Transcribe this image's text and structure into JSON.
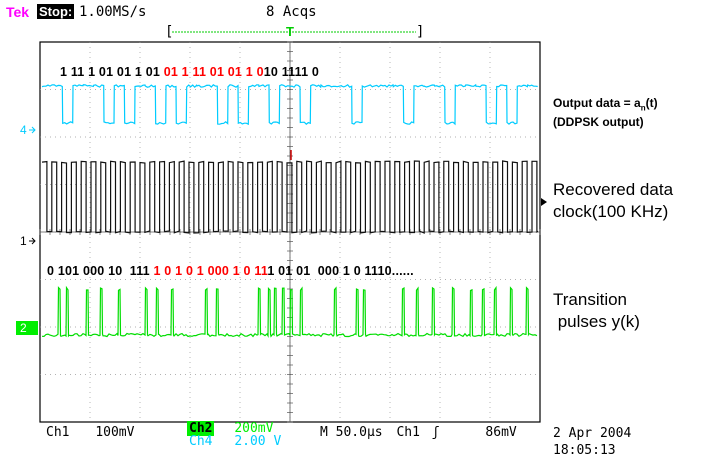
{
  "header": {
    "brand": "Tek",
    "state": "Stop:",
    "sample_rate": "1.00MS/s",
    "acquisitions": "8 Acqs"
  },
  "channel_markers": {
    "ch4": "4",
    "ch1": "1",
    "ch2": "2",
    "trigger": "T"
  },
  "bit_rows": {
    "top": [
      {
        "t": "1 11 1 01 01 1 01 ",
        "red": false
      },
      {
        "t": "01 1 11 01 01 1 0",
        "red": true
      },
      {
        "t": "10 1111 0",
        "red": false
      }
    ],
    "middle": [
      {
        "t": "0 101 000 10  111 ",
        "red": false
      },
      {
        "t": "1 0 1 0 1 000 1 0 11",
        "red": true
      },
      {
        "t": "1 01 01  000 1 0 1110......",
        "red": false
      }
    ]
  },
  "annotations": {
    "output_line1": "Output data = a",
    "output_sub": "n",
    "output_suffix": "(t)",
    "output_line2": "(DDPSK output)",
    "clock_line1": "Recovered data",
    "clock_line2": "clock(100 KHz)",
    "trans_line1": "Transition",
    "trans_line2": " pulses y(k)"
  },
  "status_bar": {
    "ch1": "Ch1",
    "ch1_scale": "100mV",
    "ch2": "Ch2",
    "ch2_scale": "200mV",
    "ch4": "Ch4",
    "ch4_scale": "2.00 V",
    "timebase": "M 50.0µs",
    "trig_source": "Ch1",
    "trig_slope": "ʃ",
    "trig_level": "86mV"
  },
  "datetime": {
    "date": "2 Apr 2004",
    "time": "18:05:13"
  },
  "colors": {
    "ch4": "#00ccff",
    "ch1": "#000000",
    "ch2": "#00ee00",
    "brand": "#ff00ff",
    "emphasis": "#ff0000"
  },
  "icons": [
    "trigger-marker-icon",
    "channel-ground-arrow-icon",
    "trigger-level-arrow-icon",
    "trigger-slope-icon"
  ]
}
